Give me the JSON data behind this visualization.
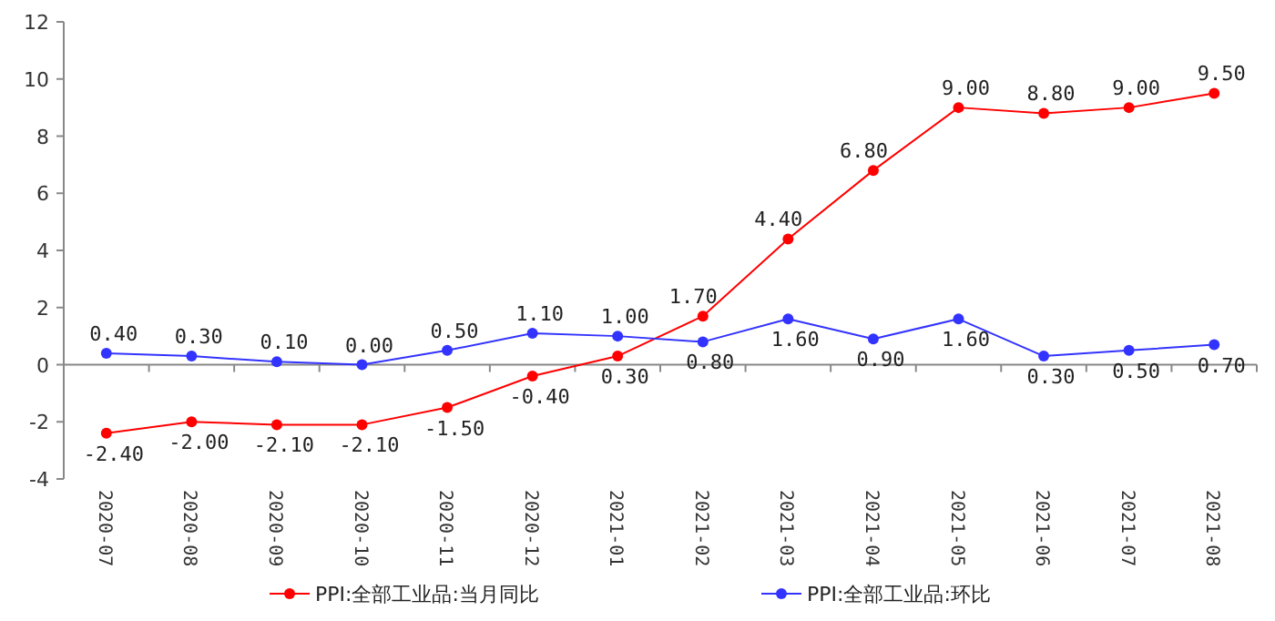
{
  "chart_data": {
    "type": "line",
    "categories": [
      "2020-07",
      "2020-08",
      "2020-09",
      "2020-10",
      "2020-11",
      "2020-12",
      "2021-01",
      "2021-02",
      "2021-03",
      "2021-04",
      "2021-05",
      "2021-06",
      "2021-07",
      "2021-08"
    ],
    "series": [
      {
        "name": "PPI:全部工业品:当月同比",
        "color": "#ff0000",
        "values": [
          -2.4,
          -2.0,
          -2.1,
          -2.1,
          -1.5,
          -0.4,
          0.3,
          1.7,
          4.4,
          6.8,
          9.0,
          8.8,
          9.0,
          9.5
        ],
        "value_labels": [
          "-2.40",
          "-2.00",
          "-2.10",
          "-2.10",
          "-1.50",
          "-0.40",
          "0.30",
          "1.70",
          "4.40",
          "6.80",
          "9.00",
          "8.80",
          "9.00",
          "9.50"
        ]
      },
      {
        "name": "PPI:全部工业品:环比",
        "color": "#3333ff",
        "values": [
          0.4,
          0.3,
          0.1,
          0.0,
          0.5,
          1.1,
          1.0,
          0.8,
          1.6,
          0.9,
          1.6,
          0.3,
          0.5,
          0.7
        ],
        "value_labels": [
          "0.40",
          "0.30",
          "0.10",
          "0.00",
          "0.50",
          "1.10",
          "1.00",
          "0.80",
          "1.60",
          "0.90",
          "1.60",
          "0.30",
          "0.50",
          "0.70"
        ]
      }
    ],
    "ylim": [
      -4,
      12
    ],
    "yticks": [
      -4,
      -2,
      0,
      2,
      4,
      6,
      8,
      10,
      12
    ],
    "marker": "circle",
    "line_style": "solid",
    "legend": "bottom"
  }
}
